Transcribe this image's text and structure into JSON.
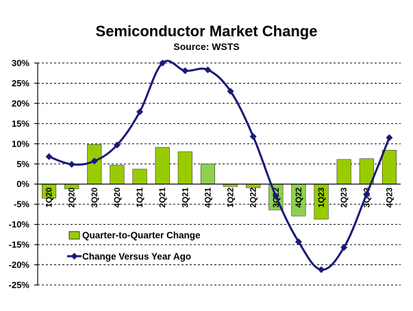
{
  "chart_data": {
    "type": "bar+line",
    "title": "Semiconductor Market Change",
    "subtitle": "Source: WSTS",
    "categories": [
      "1Q20",
      "2Q20",
      "3Q20",
      "4Q20",
      "1Q21",
      "2Q21",
      "3Q21",
      "4Q21",
      "1Q22",
      "2Q22",
      "3Q22",
      "4Q22",
      "1Q23",
      "2Q23",
      "3Q23",
      "4Q23"
    ],
    "ylim": [
      -25,
      30
    ],
    "yticks": [
      "30%",
      "25%",
      "20%",
      "15%",
      "10%",
      "5%",
      "0%",
      "-5%",
      "-10%",
      "-15%",
      "-20%",
      "-25%"
    ],
    "ytick_values": [
      30,
      25,
      20,
      15,
      10,
      5,
      0,
      -5,
      -10,
      -15,
      -20,
      -25
    ],
    "grid": "horizontal dashed",
    "legend_position": "bottom-left",
    "series": [
      {
        "name": "Quarter-to-Quarter Change",
        "type": "bar",
        "values": [
          -3.5,
          -1.2,
          9.8,
          4.7,
          3.7,
          9.1,
          8.0,
          5.0,
          -0.6,
          -0.9,
          -6.4,
          -7.9,
          -8.7,
          6.1,
          6.3,
          8.4
        ],
        "color": "#99cc00"
      },
      {
        "name": "Change Versus Year Ago",
        "type": "line",
        "values": [
          6.8,
          4.9,
          5.7,
          9.7,
          17.9,
          30.0,
          28.1,
          28.3,
          23.0,
          11.8,
          -3.0,
          -14.3,
          -21.2,
          -15.7,
          -2.5,
          11.5
        ],
        "color": "#1a1a78"
      }
    ]
  }
}
